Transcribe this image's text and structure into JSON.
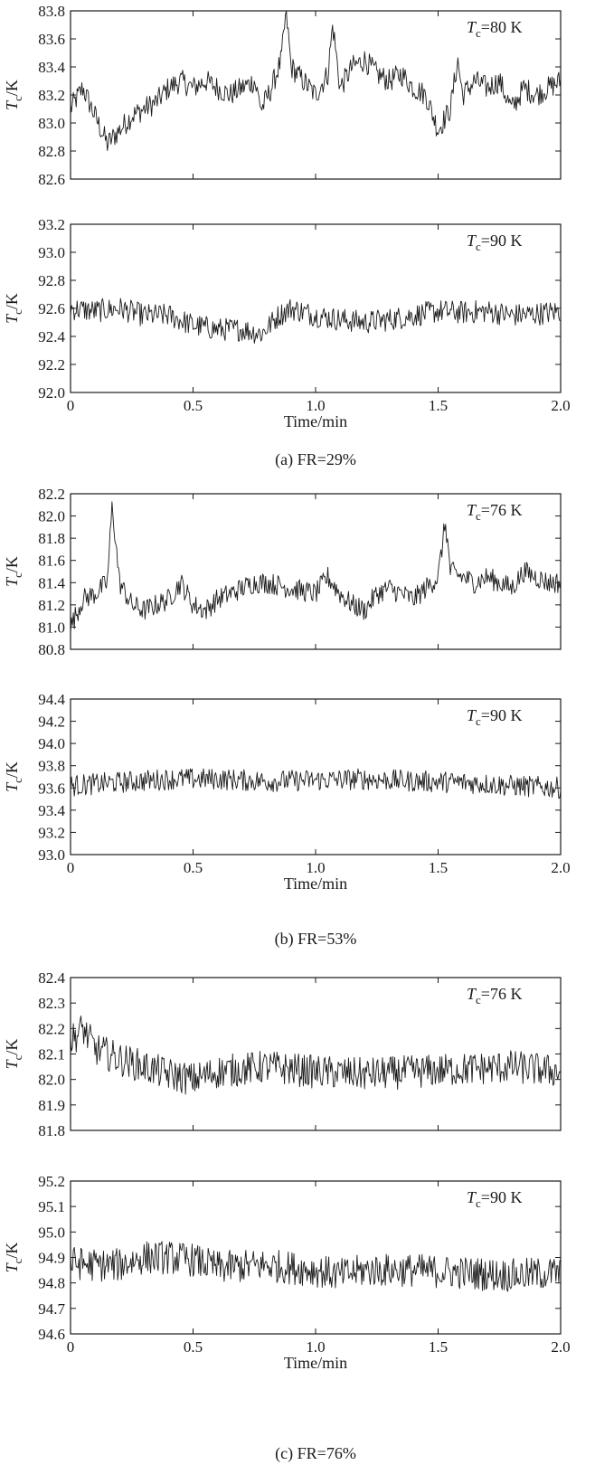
{
  "figure": {
    "captions": [
      "(a) FR=29%",
      "(b) FR=53%",
      "(c) FR=76%"
    ],
    "xlabel": "Time/min",
    "ylabel_symbol": "T",
    "ylabel_subscript": "c",
    "ylabel_unit": "/K"
  },
  "chart_data": [
    {
      "type": "line",
      "group": "(a) FR=29%",
      "annotation": {
        "symbol": "T",
        "subscript": "c",
        "text": "=80 K"
      },
      "xlim": [
        0,
        2.0
      ],
      "ylim": [
        82.6,
        83.8
      ],
      "xticks": [
        "0",
        "0.5",
        "1.0",
        "1.5",
        "2.0"
      ],
      "yticks": [
        "82.6",
        "82.8",
        "83.0",
        "83.2",
        "83.4",
        "83.6",
        "83.8"
      ],
      "xlabel": "",
      "ylabel": "Tc/K",
      "series": [
        {
          "x": [
            0.0,
            0.05,
            0.1,
            0.15,
            0.2,
            0.25,
            0.3,
            0.35,
            0.4,
            0.45,
            0.5,
            0.55,
            0.6,
            0.65,
            0.7,
            0.75,
            0.78,
            0.82,
            0.86,
            0.88,
            0.9,
            0.95,
            1.0,
            1.05,
            1.07,
            1.1,
            1.15,
            1.2,
            1.25,
            1.3,
            1.35,
            1.4,
            1.45,
            1.5,
            1.55,
            1.58,
            1.6,
            1.65,
            1.7,
            1.75,
            1.8,
            1.85,
            1.9,
            1.95,
            2.0
          ],
          "y": [
            83.1,
            83.25,
            83.05,
            82.85,
            82.95,
            83.05,
            83.1,
            83.15,
            83.25,
            83.3,
            83.25,
            83.3,
            83.25,
            83.2,
            83.25,
            83.3,
            83.1,
            83.25,
            83.45,
            83.8,
            83.4,
            83.3,
            83.2,
            83.35,
            83.7,
            83.25,
            83.4,
            83.45,
            83.35,
            83.3,
            83.35,
            83.25,
            83.2,
            82.95,
            83.1,
            83.45,
            83.2,
            83.3,
            83.25,
            83.3,
            83.1,
            83.25,
            83.2,
            83.25,
            83.3
          ]
        }
      ]
    },
    {
      "type": "line",
      "group": "(a) FR=29%",
      "annotation": {
        "symbol": "T",
        "subscript": "c",
        "text": "=90 K"
      },
      "xlim": [
        0,
        2.0
      ],
      "ylim": [
        92.0,
        93.2
      ],
      "xticks": [
        "0",
        "0.5",
        "1.0",
        "1.5",
        "2.0"
      ],
      "yticks": [
        "92.0",
        "92.2",
        "92.4",
        "92.6",
        "92.8",
        "93.0",
        "93.2"
      ],
      "xlabel": "Time/min",
      "ylabel": "Tc/K",
      "series": [
        {
          "x": [
            0.0,
            0.1,
            0.2,
            0.3,
            0.4,
            0.5,
            0.6,
            0.7,
            0.78,
            0.85,
            0.9,
            1.0,
            1.1,
            1.2,
            1.3,
            1.4,
            1.5,
            1.6,
            1.7,
            1.8,
            1.9,
            2.0
          ],
          "y": [
            92.6,
            92.58,
            92.6,
            92.55,
            92.55,
            92.48,
            92.45,
            92.45,
            92.42,
            92.55,
            92.6,
            92.55,
            92.52,
            92.5,
            92.52,
            92.55,
            92.58,
            92.57,
            92.58,
            92.55,
            92.56,
            92.58
          ]
        }
      ]
    },
    {
      "type": "line",
      "group": "(b) FR=53%",
      "annotation": {
        "symbol": "T",
        "subscript": "c",
        "text": "=76 K"
      },
      "xlim": [
        0,
        2.0
      ],
      "ylim": [
        80.8,
        82.2
      ],
      "xticks": [
        "0",
        "0.5",
        "1.0",
        "1.5",
        "2.0"
      ],
      "yticks": [
        "80.8",
        "81.0",
        "81.2",
        "81.4",
        "81.6",
        "81.8",
        "82.0",
        "82.2"
      ],
      "xlabel": "",
      "ylabel": "Tc/K",
      "series": [
        {
          "x": [
            0.0,
            0.05,
            0.1,
            0.15,
            0.17,
            0.2,
            0.25,
            0.3,
            0.35,
            0.4,
            0.45,
            0.5,
            0.55,
            0.6,
            0.7,
            0.75,
            0.8,
            0.9,
            1.0,
            1.05,
            1.1,
            1.15,
            1.2,
            1.25,
            1.3,
            1.35,
            1.4,
            1.45,
            1.5,
            1.53,
            1.55,
            1.6,
            1.65,
            1.7,
            1.75,
            1.8,
            1.85,
            1.9,
            1.95,
            2.0
          ],
          "y": [
            81.0,
            81.25,
            81.3,
            81.4,
            82.1,
            81.4,
            81.2,
            81.15,
            81.2,
            81.25,
            81.4,
            81.2,
            81.15,
            81.25,
            81.35,
            81.4,
            81.4,
            81.35,
            81.3,
            81.45,
            81.3,
            81.2,
            81.15,
            81.3,
            81.35,
            81.3,
            81.25,
            81.35,
            81.45,
            81.95,
            81.5,
            81.45,
            81.4,
            81.45,
            81.4,
            81.35,
            81.5,
            81.45,
            81.4,
            81.4
          ]
        }
      ]
    },
    {
      "type": "line",
      "group": "(b) FR=53%",
      "annotation": {
        "symbol": "T",
        "subscript": "c",
        "text": "=90 K"
      },
      "xlim": [
        0,
        2.0
      ],
      "ylim": [
        93.0,
        94.4
      ],
      "xticks": [
        "0",
        "0.5",
        "1.0",
        "1.5",
        "2.0"
      ],
      "yticks": [
        "93.0",
        "93.2",
        "93.4",
        "93.6",
        "93.8",
        "94.0",
        "94.2",
        "94.4"
      ],
      "xlabel": "Time/min",
      "ylabel": "Tc/K",
      "series": [
        {
          "x": [
            0.0,
            0.2,
            0.4,
            0.6,
            0.8,
            1.0,
            1.2,
            1.4,
            1.6,
            1.8,
            2.0
          ],
          "y": [
            93.62,
            93.65,
            93.68,
            93.68,
            93.66,
            93.67,
            93.68,
            93.66,
            93.65,
            93.62,
            93.6
          ]
        }
      ]
    },
    {
      "type": "line",
      "group": "(c) FR=76%",
      "annotation": {
        "symbol": "T",
        "subscript": "c",
        "text": "=76 K"
      },
      "xlim": [
        0,
        2.0
      ],
      "ylim": [
        81.8,
        82.4
      ],
      "xticks": [
        "0",
        "0.5",
        "1.0",
        "1.5",
        "2.0"
      ],
      "yticks": [
        "81.8",
        "81.9",
        "82.0",
        "82.1",
        "82.2",
        "82.3",
        "82.4"
      ],
      "xlabel": "",
      "ylabel": "Tc/K",
      "series": [
        {
          "x": [
            0.0,
            0.05,
            0.1,
            0.2,
            0.3,
            0.4,
            0.5,
            0.6,
            0.8,
            1.0,
            1.2,
            1.4,
            1.6,
            1.8,
            2.0
          ],
          "y": [
            82.15,
            82.2,
            82.12,
            82.08,
            82.05,
            82.02,
            82.0,
            82.03,
            82.05,
            82.03,
            82.02,
            82.03,
            82.04,
            82.05,
            82.03
          ]
        }
      ]
    },
    {
      "type": "line",
      "group": "(c) FR=76%",
      "annotation": {
        "symbol": "T",
        "subscript": "c",
        "text": "=90 K"
      },
      "xlim": [
        0,
        2.0
      ],
      "ylim": [
        94.6,
        95.2
      ],
      "xticks": [
        "0",
        "0.5",
        "1.0",
        "1.5",
        "2.0"
      ],
      "yticks": [
        "94.6",
        "94.7",
        "94.8",
        "94.9",
        "95.0",
        "95.1",
        "95.2"
      ],
      "xlabel": "Time/min",
      "ylabel": "Tc/K",
      "series": [
        {
          "x": [
            0.0,
            0.1,
            0.2,
            0.3,
            0.4,
            0.5,
            0.6,
            0.8,
            1.0,
            1.1,
            1.2,
            1.4,
            1.6,
            1.8,
            2.0
          ],
          "y": [
            94.88,
            94.87,
            94.87,
            94.9,
            94.9,
            94.89,
            94.86,
            94.87,
            94.85,
            94.83,
            94.85,
            94.85,
            94.84,
            94.83,
            94.84
          ]
        }
      ]
    }
  ]
}
